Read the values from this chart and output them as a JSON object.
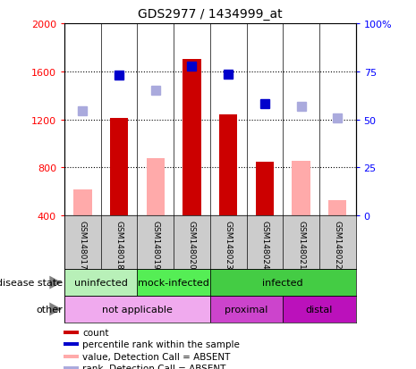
{
  "title": "GDS2977 / 1434999_at",
  "samples": [
    "GSM148017",
    "GSM148018",
    "GSM148019",
    "GSM148020",
    "GSM148023",
    "GSM148024",
    "GSM148021",
    "GSM148022"
  ],
  "count_values": [
    null,
    1210,
    null,
    1700,
    1240,
    850,
    null,
    null
  ],
  "count_absent_values": [
    620,
    null,
    880,
    null,
    null,
    null,
    855,
    530
  ],
  "rank_values": [
    null,
    1570,
    null,
    1640,
    1575,
    1330,
    null,
    null
  ],
  "rank_absent_values": [
    1270,
    null,
    1440,
    null,
    null,
    null,
    1310,
    1210
  ],
  "ylim_left": [
    400,
    2000
  ],
  "ylim_right": [
    0,
    100
  ],
  "yticks_left": [
    400,
    800,
    1200,
    1600,
    2000
  ],
  "yticks_right": [
    0,
    25,
    50,
    75,
    100
  ],
  "disease_state_groups": [
    {
      "label": "uninfected",
      "span": [
        0,
        2
      ],
      "color": "#b8f0b8"
    },
    {
      "label": "mock-infected",
      "span": [
        2,
        4
      ],
      "color": "#55ee55"
    },
    {
      "label": "infected",
      "span": [
        4,
        8
      ],
      "color": "#44cc44"
    }
  ],
  "other_groups": [
    {
      "label": "not applicable",
      "span": [
        0,
        4
      ],
      "color": "#f0aaee"
    },
    {
      "label": "proximal",
      "span": [
        4,
        6
      ],
      "color": "#cc44cc"
    },
    {
      "label": "distal",
      "span": [
        6,
        8
      ],
      "color": "#bb11bb"
    }
  ],
  "sample_label_bg": "#cccccc",
  "bar_color_count": "#cc0000",
  "bar_color_absent": "#ffaaaa",
  "dot_color_rank": "#0000cc",
  "dot_color_rank_absent": "#aaaadd",
  "legend_items": [
    {
      "label": "count",
      "color": "#cc0000"
    },
    {
      "label": "percentile rank within the sample",
      "color": "#0000cc"
    },
    {
      "label": "value, Detection Call = ABSENT",
      "color": "#ffaaaa"
    },
    {
      "label": "rank, Detection Call = ABSENT",
      "color": "#aaaadd"
    }
  ],
  "bar_width": 0.5,
  "dot_size": 7
}
